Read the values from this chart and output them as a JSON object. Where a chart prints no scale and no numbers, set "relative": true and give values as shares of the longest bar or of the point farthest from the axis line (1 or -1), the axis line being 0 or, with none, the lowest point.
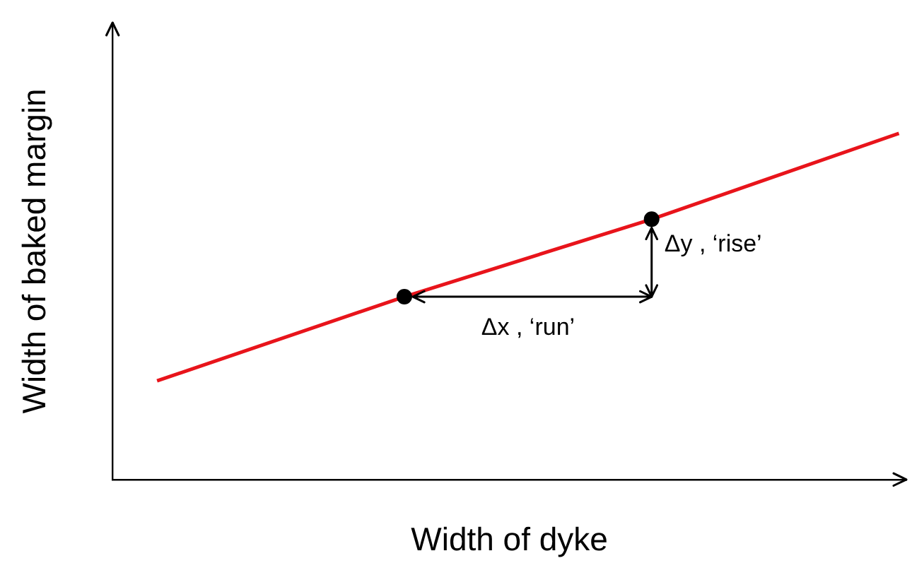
{
  "chart_data": {
    "type": "line",
    "relative": true,
    "xlabel": "Width of dyke",
    "ylabel": "Width of baked margin",
    "grid": false,
    "legend": false,
    "categories": [
      null,
      null,
      null,
      null
    ],
    "series": [
      {
        "color": "#e8141b",
        "values": [
          0.285,
          0.528,
          0.752,
          1
        ]
      }
    ],
    "annotations": [
      "Δx , ‘run’",
      "Δy , ‘rise’"
    ]
  }
}
